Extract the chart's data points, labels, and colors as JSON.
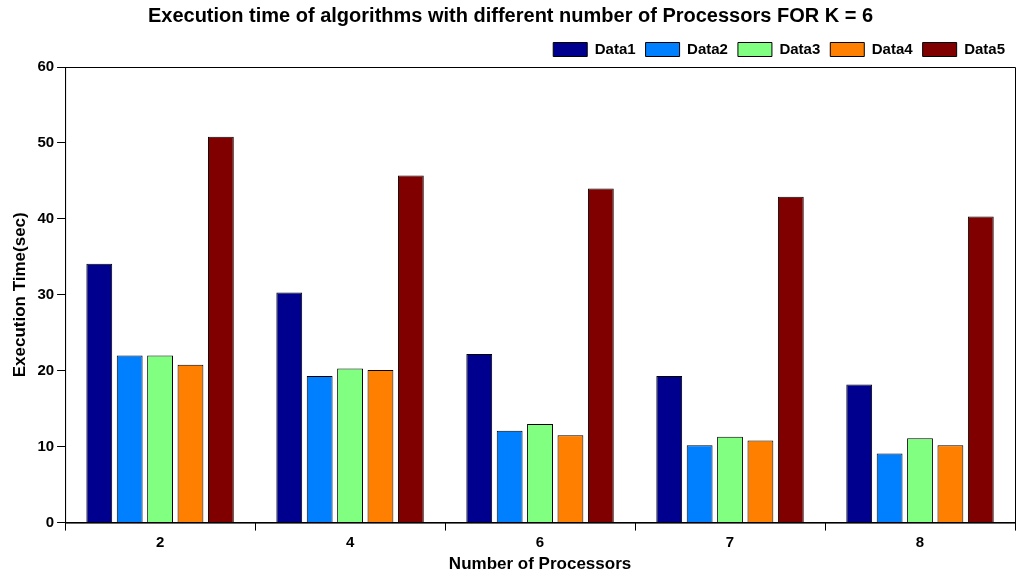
{
  "chart_data": {
    "type": "bar",
    "title": "Execution time of algorithms with different number of Processors FOR K = 6",
    "xlabel": "Number of Processors",
    "ylabel": "Execution Time(sec)",
    "categories": [
      "2",
      "4",
      "6",
      "7",
      "8"
    ],
    "series": [
      {
        "name": "Data1",
        "color": "#00008f",
        "values": [
          34.1,
          30.3,
          22.2,
          19.3,
          18.2
        ]
      },
      {
        "name": "Data2",
        "color": "#0080ff",
        "values": [
          22,
          19.3,
          12.1,
          10.2,
          9.1
        ]
      },
      {
        "name": "Data3",
        "color": "#80ff80",
        "values": [
          22,
          20.3,
          13,
          11.3,
          11.1
        ]
      },
      {
        "name": "Data4",
        "color": "#ff8000",
        "values": [
          20.8,
          20.1,
          11.5,
          10.8,
          10.2
        ]
      },
      {
        "name": "Data5",
        "color": "#800000",
        "values": [
          50.8,
          45.7,
          44,
          42.9,
          40.3
        ]
      }
    ],
    "ylim": [
      0,
      60
    ],
    "yticks": [
      0,
      10,
      20,
      30,
      40,
      50,
      60
    ],
    "grid": false,
    "legend": "top right"
  }
}
